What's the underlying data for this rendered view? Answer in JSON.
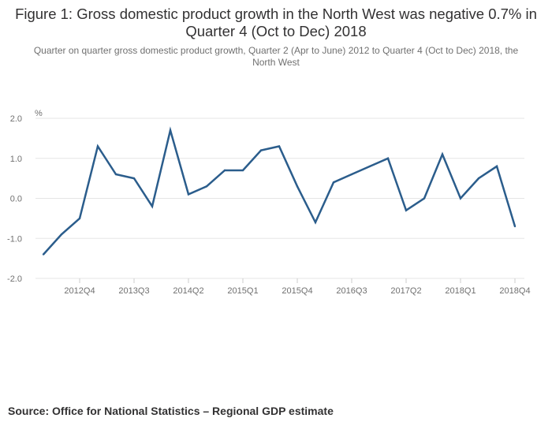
{
  "header": {
    "title": "Figure 1: Gross domestic product growth in the North West was negative 0.7% in Quarter 4 (Oct to Dec) 2018",
    "subtitle": "Quarter on quarter gross domestic product growth, Quarter 2 (Apr to June) 2012 to Quarter 4 (Oct to Dec) 2018, the North West"
  },
  "footer": {
    "source": "Source: Office for National Statistics – Regional GDP estimate"
  },
  "colors": {
    "line": "#2b5d8c",
    "grid": "#e5e5e5",
    "axis_text": "#707070"
  },
  "chart_data": {
    "type": "line",
    "title": "Figure 1: Gross domestic product growth in the North West was negative 0.7% in Quarter 4 (Oct to Dec) 2018",
    "ylabel": "%",
    "xlabel": "",
    "ylim": [
      -2.0,
      2.0
    ],
    "yticks": [
      "2.0",
      "1.0",
      "0.0",
      "-1.0",
      "-2.0"
    ],
    "ytick_values": [
      2,
      1,
      0,
      -1,
      -2
    ],
    "grid": true,
    "categories": [
      "2012Q2",
      "2012Q3",
      "2012Q4",
      "2013Q1",
      "2013Q2",
      "2013Q3",
      "2013Q4",
      "2014Q1",
      "2014Q2",
      "2014Q3",
      "2014Q4",
      "2015Q1",
      "2015Q2",
      "2015Q3",
      "2015Q4",
      "2016Q1",
      "2016Q2",
      "2016Q3",
      "2016Q4",
      "2017Q1",
      "2017Q2",
      "2017Q3",
      "2017Q4",
      "2018Q1",
      "2018Q2",
      "2018Q3",
      "2018Q4"
    ],
    "xtick_labels": [
      "2012Q4",
      "2013Q3",
      "2014Q2",
      "2015Q1",
      "2015Q4",
      "2016Q3",
      "2017Q2",
      "2018Q1",
      "2018Q4"
    ],
    "xtick_indices": [
      2,
      5,
      8,
      11,
      14,
      17,
      20,
      23,
      26
    ],
    "series": [
      {
        "name": "North West",
        "values": [
          -1.4,
          -0.9,
          -0.5,
          1.3,
          0.6,
          0.5,
          -0.2,
          1.7,
          0.1,
          0.3,
          0.7,
          0.7,
          1.2,
          1.3,
          0.3,
          -0.6,
          0.4,
          0.6,
          0.8,
          1.0,
          -0.3,
          0.0,
          1.1,
          0.0,
          0.5,
          0.8,
          -0.7
        ]
      }
    ]
  }
}
